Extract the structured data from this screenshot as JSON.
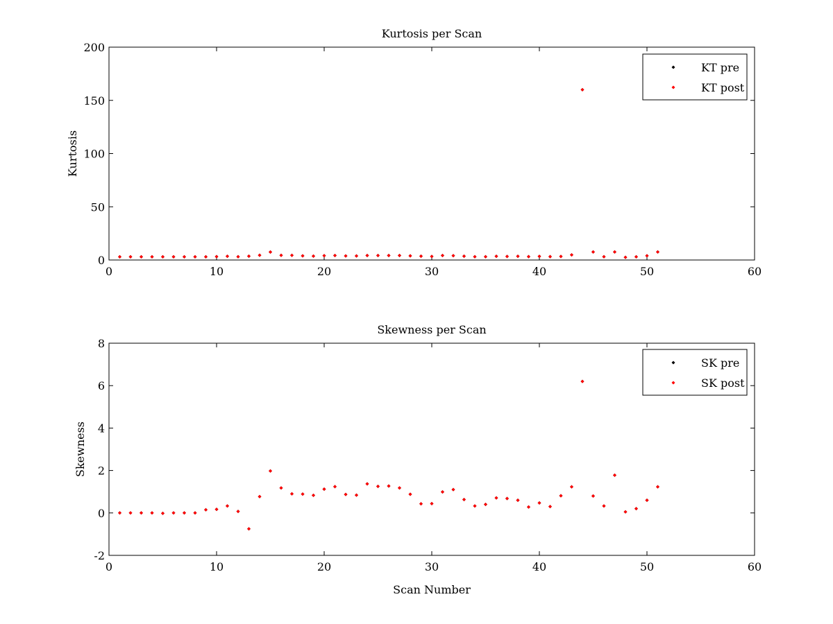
{
  "chart_data": [
    {
      "type": "scatter",
      "title": "Kurtosis per Scan",
      "xlabel": "",
      "ylabel": "Kurtosis",
      "xlim": [
        0,
        60
      ],
      "ylim": [
        0,
        200
      ],
      "xticks": [
        0,
        10,
        20,
        30,
        40,
        50,
        60
      ],
      "yticks": [
        0,
        50,
        100,
        150,
        200
      ],
      "grid": false,
      "legend_position": "top-right",
      "series": [
        {
          "name": "KT pre",
          "color": "#000000",
          "x": [
            1,
            2,
            3,
            4,
            5,
            6,
            7,
            8,
            9,
            10,
            11,
            12,
            13,
            14,
            15,
            16,
            17,
            18,
            19,
            20,
            21,
            22,
            23,
            24,
            25,
            26,
            27,
            28,
            29,
            30,
            31,
            32,
            33,
            34,
            35,
            36,
            37,
            38,
            39,
            40,
            41,
            42,
            43,
            44,
            45,
            46,
            47,
            48,
            49,
            50,
            51
          ],
          "y": [
            3,
            3,
            3,
            3,
            3,
            3,
            3,
            3,
            3,
            3.2,
            3.5,
            3.1,
            3.6,
            4.5,
            7.5,
            4.4,
            4.4,
            3.9,
            3.7,
            4.1,
            4.2,
            3.8,
            3.8,
            4.2,
            4.2,
            4.2,
            4.2,
            3.9,
            3.6,
            3.3,
            4.2,
            4.1,
            3.6,
            3.1,
            3.1,
            3.5,
            3.3,
            3.5,
            3.2,
            3.4,
            3.2,
            3.3,
            4.8,
            160,
            7.6,
            3.1,
            7.6,
            2.5,
            3,
            4,
            7.6
          ]
        },
        {
          "name": "KT post",
          "color": "#ff0000",
          "x": [
            1,
            2,
            3,
            4,
            5,
            6,
            7,
            8,
            9,
            10,
            11,
            12,
            13,
            14,
            15,
            16,
            17,
            18,
            19,
            20,
            21,
            22,
            23,
            24,
            25,
            26,
            27,
            28,
            29,
            30,
            31,
            32,
            33,
            34,
            35,
            36,
            37,
            38,
            39,
            40,
            41,
            42,
            43,
            44,
            45,
            46,
            47,
            48,
            49,
            50,
            51
          ],
          "y": [
            3,
            3,
            3,
            3,
            3,
            3,
            3,
            3,
            3,
            3.2,
            3.5,
            3.1,
            3.6,
            4.5,
            7.5,
            4.4,
            4.4,
            3.9,
            3.7,
            4.1,
            4.2,
            3.8,
            3.8,
            4.2,
            4.2,
            4.2,
            4.2,
            3.9,
            3.6,
            3.3,
            4.2,
            4.1,
            3.6,
            3.1,
            3.1,
            3.5,
            3.3,
            3.5,
            3.2,
            3.4,
            3.2,
            3.3,
            4.8,
            160,
            7.6,
            3.1,
            7.6,
            2.5,
            3,
            4,
            7.6
          ]
        }
      ]
    },
    {
      "type": "scatter",
      "title": "Skewness per Scan",
      "xlabel": "Scan Number",
      "ylabel": "Skewness",
      "xlim": [
        0,
        60
      ],
      "ylim": [
        -2,
        8
      ],
      "xticks": [
        0,
        10,
        20,
        30,
        40,
        50,
        60
      ],
      "yticks": [
        -2,
        0,
        2,
        4,
        6,
        8
      ],
      "grid": false,
      "legend_position": "top-right",
      "series": [
        {
          "name": "SK pre",
          "color": "#000000",
          "x": [
            1,
            2,
            3,
            4,
            5,
            6,
            7,
            8,
            9,
            10,
            11,
            12,
            13,
            14,
            15,
            16,
            17,
            18,
            19,
            20,
            21,
            22,
            23,
            24,
            25,
            26,
            27,
            28,
            29,
            30,
            31,
            32,
            33,
            34,
            35,
            36,
            37,
            38,
            39,
            40,
            41,
            42,
            43,
            44,
            45,
            46,
            47,
            48,
            49,
            50,
            51
          ],
          "y": [
            0,
            0,
            0,
            0,
            -0.02,
            0,
            0,
            0,
            0.15,
            0.17,
            0.33,
            0.07,
            -0.75,
            0.77,
            1.98,
            1.18,
            0.9,
            0.89,
            0.83,
            1.12,
            1.24,
            0.87,
            0.84,
            1.37,
            1.25,
            1.27,
            1.18,
            0.88,
            0.43,
            0.44,
            0.99,
            1.1,
            0.63,
            0.33,
            0.4,
            0.71,
            0.68,
            0.6,
            0.28,
            0.47,
            0.3,
            0.81,
            1.23,
            6.2,
            0.8,
            0.33,
            1.78,
            0.05,
            0.2,
            0.6,
            1.23
          ]
        },
        {
          "name": "SK post",
          "color": "#ff0000",
          "x": [
            1,
            2,
            3,
            4,
            5,
            6,
            7,
            8,
            9,
            10,
            11,
            12,
            13,
            14,
            15,
            16,
            17,
            18,
            19,
            20,
            21,
            22,
            23,
            24,
            25,
            26,
            27,
            28,
            29,
            30,
            31,
            32,
            33,
            34,
            35,
            36,
            37,
            38,
            39,
            40,
            41,
            42,
            43,
            44,
            45,
            46,
            47,
            48,
            49,
            50,
            51
          ],
          "y": [
            0,
            0,
            0,
            0,
            -0.02,
            0,
            0,
            0,
            0.15,
            0.17,
            0.33,
            0.07,
            -0.75,
            0.77,
            1.98,
            1.18,
            0.9,
            0.89,
            0.83,
            1.12,
            1.24,
            0.87,
            0.84,
            1.37,
            1.25,
            1.27,
            1.18,
            0.88,
            0.43,
            0.44,
            0.99,
            1.1,
            0.63,
            0.33,
            0.4,
            0.71,
            0.68,
            0.6,
            0.28,
            0.47,
            0.3,
            0.81,
            1.23,
            6.2,
            0.8,
            0.33,
            1.78,
            0.05,
            0.2,
            0.6,
            1.23
          ]
        }
      ]
    }
  ]
}
